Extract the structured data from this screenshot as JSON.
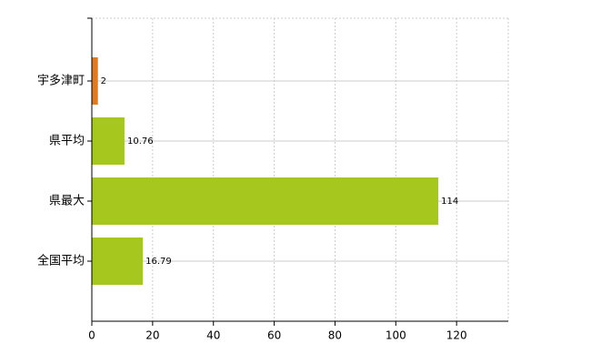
{
  "chart_data": {
    "type": "hbar",
    "categories": [
      "宇多津町",
      "県平均",
      "県最大",
      "全国平均"
    ],
    "values": [
      2,
      10.76,
      114,
      16.79
    ],
    "colors": [
      "#e07a1f",
      "#a6c81e",
      "#a6c81e",
      "#a6c81e"
    ],
    "xlim": [
      0,
      137
    ],
    "xticks": [
      0,
      20,
      40,
      60,
      80,
      100,
      120
    ],
    "grid": true
  }
}
